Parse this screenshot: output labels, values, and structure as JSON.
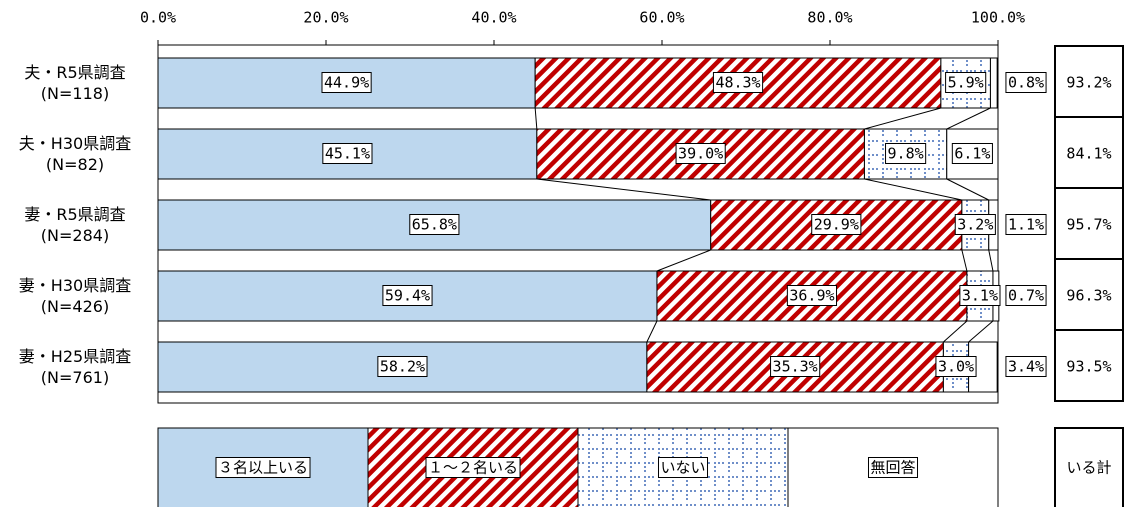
{
  "chart_data": {
    "type": "stacked-bar",
    "categories": [
      "夫・R5県調査\n(N=118)",
      "夫・H30県調査\n(N=82)",
      "妻・R5県調査\n(N=284)",
      "妻・H30県調査\n(N=426)",
      "妻・H25県調査\n(N=761)"
    ],
    "series": [
      {
        "name": "３名以上いる",
        "color": "#bdd7ee",
        "values": [
          44.9,
          45.1,
          65.8,
          59.4,
          58.2
        ],
        "value_labels": [
          "44.9%",
          "45.1%",
          "65.8%",
          "59.4%",
          "58.2%"
        ]
      },
      {
        "name": "１～２名いる",
        "color": "#c00000",
        "values": [
          48.3,
          39.0,
          29.9,
          36.9,
          35.3
        ],
        "value_labels": [
          "48.3%",
          "39.0%",
          "29.9%",
          "36.9%",
          "35.3%"
        ]
      },
      {
        "name": "いない",
        "color": "#8eaadb",
        "values": [
          5.9,
          9.8,
          3.2,
          3.1,
          3.0
        ],
        "value_labels": [
          "5.9%",
          "9.8%",
          "3.2%",
          "3.1%",
          "3.0%"
        ]
      },
      {
        "name": "無回答",
        "color": "#ffffff",
        "values": [
          0.8,
          6.1,
          1.1,
          0.7,
          3.4
        ],
        "value_labels": [
          "0.8%",
          "6.1%",
          "1.1%",
          "0.7%",
          "3.4%"
        ]
      }
    ],
    "total": {
      "name": "いる計",
      "values": [
        93.2,
        84.1,
        95.7,
        96.3,
        93.5
      ],
      "value_labels": [
        "93.2%",
        "84.1%",
        "95.7%",
        "96.3%",
        "93.5%"
      ]
    },
    "xlim": [
      0,
      100
    ],
    "xticks": [
      {
        "value": 0,
        "label": "0.0%"
      },
      {
        "value": 20,
        "label": "20.0%"
      },
      {
        "value": 40,
        "label": "40.0%"
      },
      {
        "value": 60,
        "label": "60.0%"
      },
      {
        "value": 80,
        "label": "80.0%"
      },
      {
        "value": 100,
        "label": "100.0%"
      }
    ]
  }
}
